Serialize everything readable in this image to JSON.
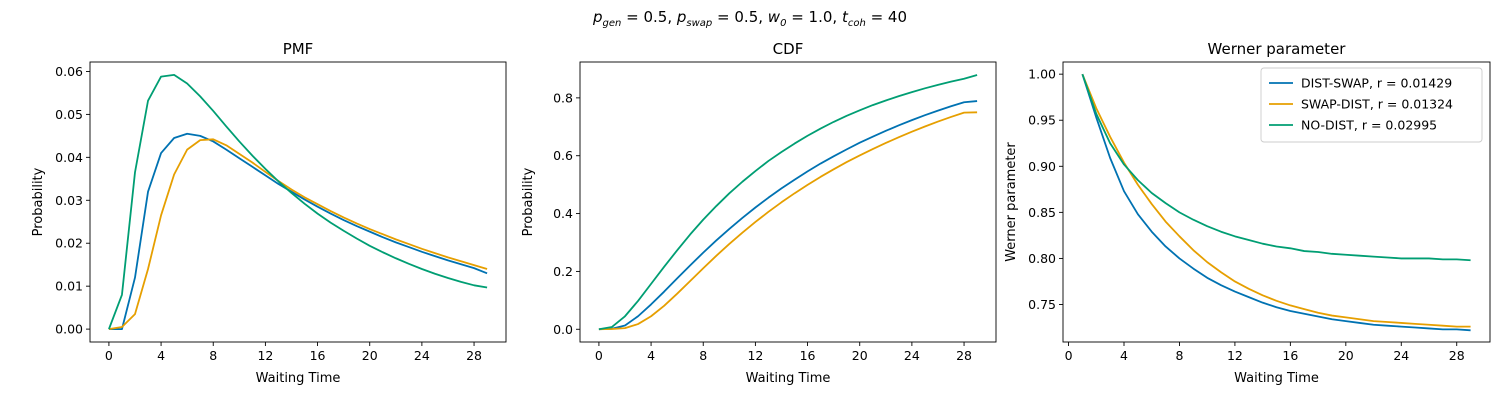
{
  "figure": {
    "suptitle": "p_gen = 0.5, p_swap = 0.5, w_0 = 1.0, t_coh = 40",
    "suptitle_parts": {
      "p1": "p",
      "p1_sub": "gen",
      "eq1": " = 0.5, ",
      "p2": "p",
      "p2_sub": "swap",
      "eq2": " = 0.5, ",
      "w": "w",
      "w_sub": "0",
      "eq3": " = 1.0, ",
      "t": "t",
      "t_sub": "coh",
      "eq4": " = 40"
    }
  },
  "colors": {
    "DIST-SWAP": "#0072b2",
    "SWAP-DIST": "#e69f00",
    "NO-DIST": "#009e73"
  },
  "chart_data": [
    {
      "type": "line",
      "title": "PMF",
      "xlabel": "Waiting Time",
      "ylabel": "Probability",
      "xlim": [
        -1.45,
        30.45
      ],
      "ylim": [
        -0.003,
        0.0622
      ],
      "xticks": [
        0,
        4,
        8,
        12,
        16,
        20,
        24,
        28
      ],
      "yticks": [
        0.0,
        0.01,
        0.02,
        0.03,
        0.04,
        0.05,
        0.06
      ],
      "ytick_labels": [
        "0.00",
        "0.01",
        "0.02",
        "0.03",
        "0.04",
        "0.05",
        "0.06"
      ],
      "grid": false,
      "x": [
        0,
        1,
        2,
        3,
        4,
        5,
        6,
        7,
        8,
        9,
        10,
        11,
        12,
        13,
        14,
        15,
        16,
        17,
        18,
        19,
        20,
        21,
        22,
        23,
        24,
        25,
        26,
        27,
        28,
        29
      ],
      "series": [
        {
          "name": "DIST-SWAP",
          "values": [
            0.0,
            0.0,
            0.012,
            0.032,
            0.041,
            0.0445,
            0.0455,
            0.045,
            0.0437,
            0.0418,
            0.0398,
            0.0378,
            0.0358,
            0.0338,
            0.032,
            0.0302,
            0.0285,
            0.0269,
            0.0254,
            0.024,
            0.0227,
            0.0214,
            0.0202,
            0.0191,
            0.018,
            0.017,
            0.016,
            0.0151,
            0.0142,
            0.013
          ]
        },
        {
          "name": "SWAP-DIST",
          "values": [
            0.0,
            0.0005,
            0.0035,
            0.014,
            0.0265,
            0.036,
            0.0418,
            0.044,
            0.0442,
            0.0428,
            0.0408,
            0.0388,
            0.0366,
            0.0345,
            0.0325,
            0.0307,
            0.0291,
            0.0275,
            0.026,
            0.0246,
            0.0233,
            0.0221,
            0.0209,
            0.0198,
            0.0187,
            0.0177,
            0.0167,
            0.0158,
            0.0149,
            0.014
          ]
        },
        {
          "name": "NO-DIST",
          "values": [
            0.0,
            0.008,
            0.0365,
            0.0532,
            0.0588,
            0.0592,
            0.0572,
            0.0542,
            0.0508,
            0.0472,
            0.0437,
            0.0404,
            0.0373,
            0.0344,
            0.0317,
            0.0292,
            0.0269,
            0.0248,
            0.0229,
            0.0211,
            0.0194,
            0.0179,
            0.0165,
            0.0152,
            0.014,
            0.0129,
            0.0119,
            0.011,
            0.0102,
            0.0097
          ]
        }
      ]
    },
    {
      "type": "line",
      "title": "CDF",
      "xlabel": "Waiting Time",
      "ylabel": "Probability",
      "xlim": [
        -1.45,
        30.45
      ],
      "ylim": [
        -0.044,
        0.924
      ],
      "xticks": [
        0,
        4,
        8,
        12,
        16,
        20,
        24,
        28
      ],
      "yticks": [
        0.0,
        0.2,
        0.4,
        0.6,
        0.8
      ],
      "ytick_labels": [
        "0.0",
        "0.2",
        "0.4",
        "0.6",
        "0.8"
      ],
      "grid": false,
      "x": [
        0,
        1,
        2,
        3,
        4,
        5,
        6,
        7,
        8,
        9,
        10,
        11,
        12,
        13,
        14,
        15,
        16,
        17,
        18,
        19,
        20,
        21,
        22,
        23,
        24,
        25,
        26,
        27,
        28,
        29
      ],
      "series": [
        {
          "name": "DIST-SWAP",
          "values": [
            0.0,
            0.002,
            0.013,
            0.045,
            0.086,
            0.13,
            0.176,
            0.221,
            0.265,
            0.307,
            0.347,
            0.385,
            0.421,
            0.455,
            0.487,
            0.517,
            0.546,
            0.573,
            0.598,
            0.622,
            0.645,
            0.666,
            0.686,
            0.705,
            0.723,
            0.74,
            0.756,
            0.771,
            0.785,
            0.789
          ]
        },
        {
          "name": "SWAP-DIST",
          "values": [
            0.0,
            0.001,
            0.004,
            0.018,
            0.045,
            0.081,
            0.123,
            0.167,
            0.211,
            0.254,
            0.295,
            0.334,
            0.371,
            0.406,
            0.439,
            0.47,
            0.499,
            0.527,
            0.553,
            0.578,
            0.601,
            0.623,
            0.644,
            0.664,
            0.683,
            0.701,
            0.718,
            0.734,
            0.749,
            0.75
          ]
        },
        {
          "name": "NO-DIST",
          "values": [
            0.0,
            0.008,
            0.045,
            0.098,
            0.157,
            0.216,
            0.273,
            0.328,
            0.379,
            0.426,
            0.47,
            0.51,
            0.547,
            0.582,
            0.613,
            0.642,
            0.669,
            0.694,
            0.717,
            0.738,
            0.757,
            0.775,
            0.791,
            0.806,
            0.82,
            0.833,
            0.845,
            0.856,
            0.866,
            0.879
          ]
        }
      ]
    },
    {
      "type": "line",
      "title": "Werner parameter",
      "xlabel": "Waiting Time",
      "ylabel": "Werner parameter",
      "xlim": [
        -0.4,
        30.4
      ],
      "ylim": [
        0.7093,
        1.0132
      ],
      "xticks": [
        0,
        4,
        8,
        12,
        16,
        20,
        24,
        28
      ],
      "yticks": [
        0.75,
        0.8,
        0.85,
        0.9,
        0.95,
        1.0
      ],
      "ytick_labels": [
        "0.75",
        "0.80",
        "0.85",
        "0.90",
        "0.95",
        "1.00"
      ],
      "grid": false,
      "legend": "top-right",
      "x": [
        1,
        2,
        3,
        4,
        5,
        6,
        7,
        8,
        9,
        10,
        11,
        12,
        13,
        14,
        15,
        16,
        17,
        18,
        19,
        20,
        21,
        22,
        23,
        24,
        25,
        26,
        27,
        28,
        29
      ],
      "series": [
        {
          "name": "DIST-SWAP, r = 0.01429",
          "key": "DIST-SWAP",
          "values": [
            1.0,
            0.953,
            0.909,
            0.873,
            0.848,
            0.829,
            0.813,
            0.8,
            0.789,
            0.779,
            0.771,
            0.764,
            0.758,
            0.752,
            0.747,
            0.743,
            0.74,
            0.737,
            0.734,
            0.732,
            0.73,
            0.728,
            0.727,
            0.726,
            0.725,
            0.724,
            0.723,
            0.723,
            0.722
          ]
        },
        {
          "name": "SWAP-DIST, r = 0.01324",
          "key": "SWAP-DIST",
          "values": [
            1.0,
            0.963,
            0.932,
            0.904,
            0.88,
            0.859,
            0.84,
            0.824,
            0.809,
            0.796,
            0.785,
            0.775,
            0.767,
            0.76,
            0.754,
            0.749,
            0.745,
            0.741,
            0.738,
            0.736,
            0.734,
            0.732,
            0.731,
            0.73,
            0.729,
            0.728,
            0.727,
            0.726,
            0.726
          ]
        },
        {
          "name": "NO-DIST, r = 0.02995",
          "key": "NO-DIST",
          "values": [
            1.0,
            0.957,
            0.925,
            0.902,
            0.885,
            0.871,
            0.86,
            0.85,
            0.842,
            0.835,
            0.829,
            0.824,
            0.82,
            0.816,
            0.813,
            0.811,
            0.808,
            0.807,
            0.805,
            0.804,
            0.803,
            0.802,
            0.801,
            0.8,
            0.8,
            0.8,
            0.799,
            0.799,
            0.798
          ]
        }
      ]
    }
  ]
}
